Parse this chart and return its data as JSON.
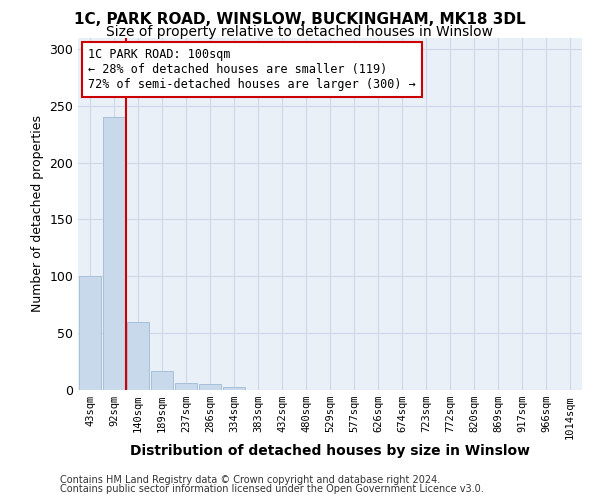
{
  "title1": "1C, PARK ROAD, WINSLOW, BUCKINGHAM, MK18 3DL",
  "title2": "Size of property relative to detached houses in Winslow",
  "xlabel": "Distribution of detached houses by size in Winslow",
  "ylabel": "Number of detached properties",
  "categories": [
    "43sqm",
    "92sqm",
    "140sqm",
    "189sqm",
    "237sqm",
    "286sqm",
    "334sqm",
    "383sqm",
    "432sqm",
    "480sqm",
    "529sqm",
    "577sqm",
    "626sqm",
    "674sqm",
    "723sqm",
    "772sqm",
    "820sqm",
    "869sqm",
    "917sqm",
    "966sqm",
    "1014sqm"
  ],
  "values": [
    100,
    240,
    60,
    17,
    6,
    5,
    3,
    0,
    0,
    0,
    0,
    0,
    0,
    0,
    0,
    0,
    0,
    0,
    0,
    0,
    0
  ],
  "bar_color": "#c8d9eb",
  "bar_edge_color": "#a8c0d8",
  "grid_color": "#d0d8e8",
  "annotation_line1": "1C PARK ROAD: 100sqm",
  "annotation_line2": "← 28% of detached houses are smaller (119)",
  "annotation_line3": "72% of semi-detached houses are larger (300) →",
  "annotation_box_color": "#ffffff",
  "annotation_border_color": "#cc0000",
  "redline_color": "#cc0000",
  "redline_x": 1.48,
  "ylim": [
    0,
    310
  ],
  "yticks": [
    0,
    50,
    100,
    150,
    200,
    250,
    300
  ],
  "background_color": "#eaf0f8",
  "footer_text1": "Contains HM Land Registry data © Crown copyright and database right 2024.",
  "footer_text2": "Contains public sector information licensed under the Open Government Licence v3.0."
}
